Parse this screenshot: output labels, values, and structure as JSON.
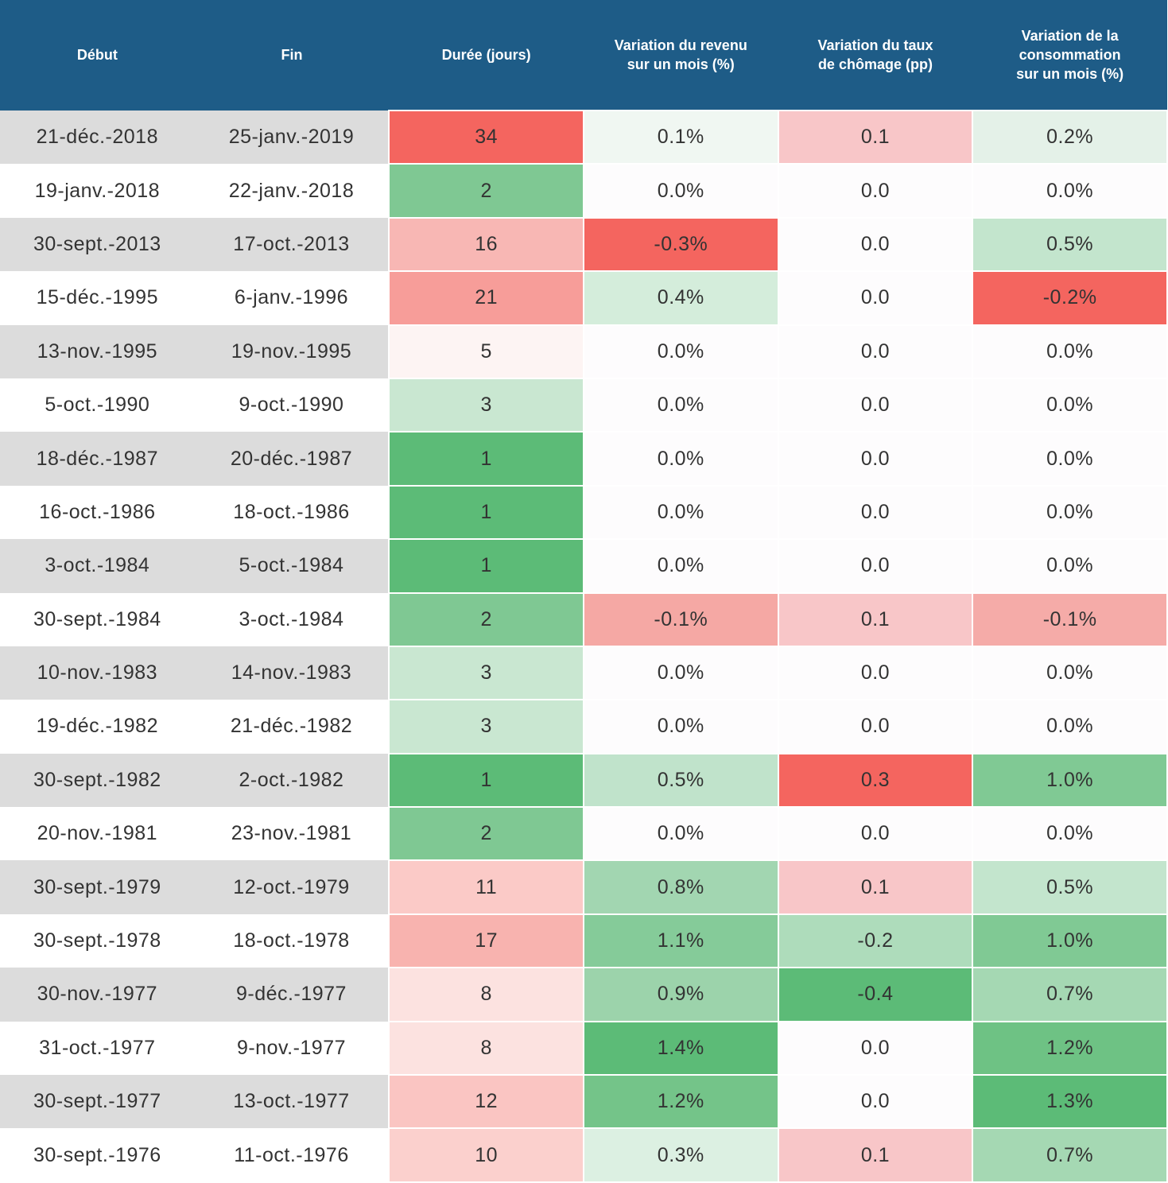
{
  "theme": {
    "header_bg": "#1e5c87",
    "header_text": "#ffffff",
    "stripe_gray": "#dcdcdc",
    "stripe_white": "#ffffff",
    "cell_text": "#333333",
    "heat_red_full": "#f4655f",
    "heat_green_full": "#5cbb77",
    "heat_neutral": "#fdfcfd"
  },
  "chart_data": {
    "type": "table",
    "columns": [
      "Début",
      "Fin",
      "Durée (jours)",
      "Variation du revenu\nsur un mois (%)",
      "Variation du taux\nde chômage (pp)",
      "Variation de la\nconsommation\nsur un mois (%)"
    ],
    "rows": [
      {
        "cells": [
          {
            "text": "21-déc.-2018",
            "bg": "#dcdcdc"
          },
          {
            "text": "25-janv.-2019",
            "bg": "#dcdcdc"
          },
          {
            "text": "34",
            "bg": "#f4655f"
          },
          {
            "text": "0.1%",
            "bg": "#f0f7f2"
          },
          {
            "text": "0.1",
            "bg": "#f8c6c8"
          },
          {
            "text": "0.2%",
            "bg": "#e4f1e8"
          }
        ]
      },
      {
        "cells": [
          {
            "text": "19-janv.-2018",
            "bg": "#ffffff"
          },
          {
            "text": "22-janv.-2018",
            "bg": "#ffffff"
          },
          {
            "text": "2",
            "bg": "#7fc893"
          },
          {
            "text": "0.0%",
            "bg": "#fdfcfd"
          },
          {
            "text": "0.0",
            "bg": "#fdfcfd"
          },
          {
            "text": "0.0%",
            "bg": "#fdfcfd"
          }
        ]
      },
      {
        "cells": [
          {
            "text": "30-sept.-2013",
            "bg": "#dcdcdc"
          },
          {
            "text": "17-oct.-2013",
            "bg": "#dcdcdc"
          },
          {
            "text": "16",
            "bg": "#f8b7b4"
          },
          {
            "text": "-0.3%",
            "bg": "#f4655f"
          },
          {
            "text": "0.0",
            "bg": "#fdfcfd"
          },
          {
            "text": "0.5%",
            "bg": "#c3e5cd"
          }
        ]
      },
      {
        "cells": [
          {
            "text": "15-déc.-1995",
            "bg": "#ffffff"
          },
          {
            "text": "6-janv.-1996",
            "bg": "#ffffff"
          },
          {
            "text": "21",
            "bg": "#f79d99"
          },
          {
            "text": "0.4%",
            "bg": "#d4eddb"
          },
          {
            "text": "0.0",
            "bg": "#fdfcfd"
          },
          {
            "text": "-0.2%",
            "bg": "#f4655f"
          }
        ]
      },
      {
        "cells": [
          {
            "text": "13-nov.-1995",
            "bg": "#dcdcdc"
          },
          {
            "text": "19-nov.-1995",
            "bg": "#dcdcdc"
          },
          {
            "text": "5",
            "bg": "#fdf4f3"
          },
          {
            "text": "0.0%",
            "bg": "#fdfcfd"
          },
          {
            "text": "0.0",
            "bg": "#fdfcfd"
          },
          {
            "text": "0.0%",
            "bg": "#fdfcfd"
          }
        ]
      },
      {
        "cells": [
          {
            "text": "5-oct.-1990",
            "bg": "#ffffff"
          },
          {
            "text": "9-oct.-1990",
            "bg": "#ffffff"
          },
          {
            "text": "3",
            "bg": "#c9e7d1"
          },
          {
            "text": "0.0%",
            "bg": "#fdfcfd"
          },
          {
            "text": "0.0",
            "bg": "#fdfcfd"
          },
          {
            "text": "0.0%",
            "bg": "#fdfcfd"
          }
        ]
      },
      {
        "cells": [
          {
            "text": "18-déc.-1987",
            "bg": "#dcdcdc"
          },
          {
            "text": "20-déc.-1987",
            "bg": "#dcdcdc"
          },
          {
            "text": "1",
            "bg": "#5cbb77"
          },
          {
            "text": "0.0%",
            "bg": "#fdfcfd"
          },
          {
            "text": "0.0",
            "bg": "#fdfcfd"
          },
          {
            "text": "0.0%",
            "bg": "#fdfcfd"
          }
        ]
      },
      {
        "cells": [
          {
            "text": "16-oct.-1986",
            "bg": "#ffffff"
          },
          {
            "text": "18-oct.-1986",
            "bg": "#ffffff"
          },
          {
            "text": "1",
            "bg": "#5cbb77"
          },
          {
            "text": "0.0%",
            "bg": "#fdfcfd"
          },
          {
            "text": "0.0",
            "bg": "#fdfcfd"
          },
          {
            "text": "0.0%",
            "bg": "#fdfcfd"
          }
        ]
      },
      {
        "cells": [
          {
            "text": "3-oct.-1984",
            "bg": "#dcdcdc"
          },
          {
            "text": "5-oct.-1984",
            "bg": "#dcdcdc"
          },
          {
            "text": "1",
            "bg": "#5cbb77"
          },
          {
            "text": "0.0%",
            "bg": "#fdfcfd"
          },
          {
            "text": "0.0",
            "bg": "#fdfcfd"
          },
          {
            "text": "0.0%",
            "bg": "#fdfcfd"
          }
        ]
      },
      {
        "cells": [
          {
            "text": "30-sept.-1984",
            "bg": "#ffffff"
          },
          {
            "text": "3-oct.-1984",
            "bg": "#ffffff"
          },
          {
            "text": "2",
            "bg": "#7fc893"
          },
          {
            "text": "-0.1%",
            "bg": "#f5a8a4"
          },
          {
            "text": "0.1",
            "bg": "#f8c6c8"
          },
          {
            "text": "-0.1%",
            "bg": "#f5aba8"
          }
        ]
      },
      {
        "cells": [
          {
            "text": "10-nov.-1983",
            "bg": "#dcdcdc"
          },
          {
            "text": "14-nov.-1983",
            "bg": "#dcdcdc"
          },
          {
            "text": "3",
            "bg": "#c9e7d1"
          },
          {
            "text": "0.0%",
            "bg": "#fdfcfd"
          },
          {
            "text": "0.0",
            "bg": "#fdfcfd"
          },
          {
            "text": "0.0%",
            "bg": "#fdfcfd"
          }
        ]
      },
      {
        "cells": [
          {
            "text": "19-déc.-1982",
            "bg": "#ffffff"
          },
          {
            "text": "21-déc.-1982",
            "bg": "#ffffff"
          },
          {
            "text": "3",
            "bg": "#c9e7d1"
          },
          {
            "text": "0.0%",
            "bg": "#fdfcfd"
          },
          {
            "text": "0.0",
            "bg": "#fdfcfd"
          },
          {
            "text": "0.0%",
            "bg": "#fdfcfd"
          }
        ]
      },
      {
        "cells": [
          {
            "text": "30-sept.-1982",
            "bg": "#dcdcdc"
          },
          {
            "text": "2-oct.-1982",
            "bg": "#dcdcdc"
          },
          {
            "text": "1",
            "bg": "#5cbb77"
          },
          {
            "text": "0.5%",
            "bg": "#c0e3cb"
          },
          {
            "text": "0.3",
            "bg": "#f4655f"
          },
          {
            "text": "1.0%",
            "bg": "#80c994"
          }
        ]
      },
      {
        "cells": [
          {
            "text": "20-nov.-1981",
            "bg": "#ffffff"
          },
          {
            "text": "23-nov.-1981",
            "bg": "#ffffff"
          },
          {
            "text": "2",
            "bg": "#7fc893"
          },
          {
            "text": "0.0%",
            "bg": "#fdfcfd"
          },
          {
            "text": "0.0",
            "bg": "#fdfcfd"
          },
          {
            "text": "0.0%",
            "bg": "#fdfcfd"
          }
        ]
      },
      {
        "cells": [
          {
            "text": "30-sept.-1979",
            "bg": "#dcdcdc"
          },
          {
            "text": "12-oct.-1979",
            "bg": "#dcdcdc"
          },
          {
            "text": "11",
            "bg": "#fbcac7"
          },
          {
            "text": "0.8%",
            "bg": "#a2d6b1"
          },
          {
            "text": "0.1",
            "bg": "#f8c6c8"
          },
          {
            "text": "0.5%",
            "bg": "#c3e5cd"
          }
        ]
      },
      {
        "cells": [
          {
            "text": "30-sept.-1978",
            "bg": "#ffffff"
          },
          {
            "text": "18-oct.-1978",
            "bg": "#ffffff"
          },
          {
            "text": "17",
            "bg": "#f8b3af"
          },
          {
            "text": "1.1%",
            "bg": "#85cb99"
          },
          {
            "text": "-0.2",
            "bg": "#aedcbb"
          },
          {
            "text": "1.0%",
            "bg": "#80c994"
          }
        ]
      },
      {
        "cells": [
          {
            "text": "30-nov.-1977",
            "bg": "#dcdcdc"
          },
          {
            "text": "9-déc.-1977",
            "bg": "#dcdcdc"
          },
          {
            "text": "8",
            "bg": "#fce2e0"
          },
          {
            "text": "0.9%",
            "bg": "#9cd3ab"
          },
          {
            "text": "-0.4",
            "bg": "#5cbb77"
          },
          {
            "text": "0.7%",
            "bg": "#a5d8b3"
          }
        ]
      },
      {
        "cells": [
          {
            "text": "31-oct.-1977",
            "bg": "#ffffff"
          },
          {
            "text": "9-nov.-1977",
            "bg": "#ffffff"
          },
          {
            "text": "8",
            "bg": "#fce2e0"
          },
          {
            "text": "1.4%",
            "bg": "#5cbb77"
          },
          {
            "text": "0.0",
            "bg": "#fdfcfd"
          },
          {
            "text": "1.2%",
            "bg": "#6ec284"
          }
        ]
      },
      {
        "cells": [
          {
            "text": "30-sept.-1977",
            "bg": "#dcdcdc"
          },
          {
            "text": "13-oct.-1977",
            "bg": "#dcdcdc"
          },
          {
            "text": "12",
            "bg": "#fac5c2"
          },
          {
            "text": "1.2%",
            "bg": "#74c489"
          },
          {
            "text": "0.0",
            "bg": "#fdfcfd"
          },
          {
            "text": "1.3%",
            "bg": "#5cbb77"
          }
        ]
      },
      {
        "cells": [
          {
            "text": "30-sept.-1976",
            "bg": "#ffffff"
          },
          {
            "text": "11-oct.-1976",
            "bg": "#ffffff"
          },
          {
            "text": "10",
            "bg": "#fbd0cd"
          },
          {
            "text": "0.3%",
            "bg": "#dcf0e2"
          },
          {
            "text": "0.1",
            "bg": "#f8c6c8"
          },
          {
            "text": "0.7%",
            "bg": "#a5d8b3"
          }
        ]
      }
    ]
  }
}
